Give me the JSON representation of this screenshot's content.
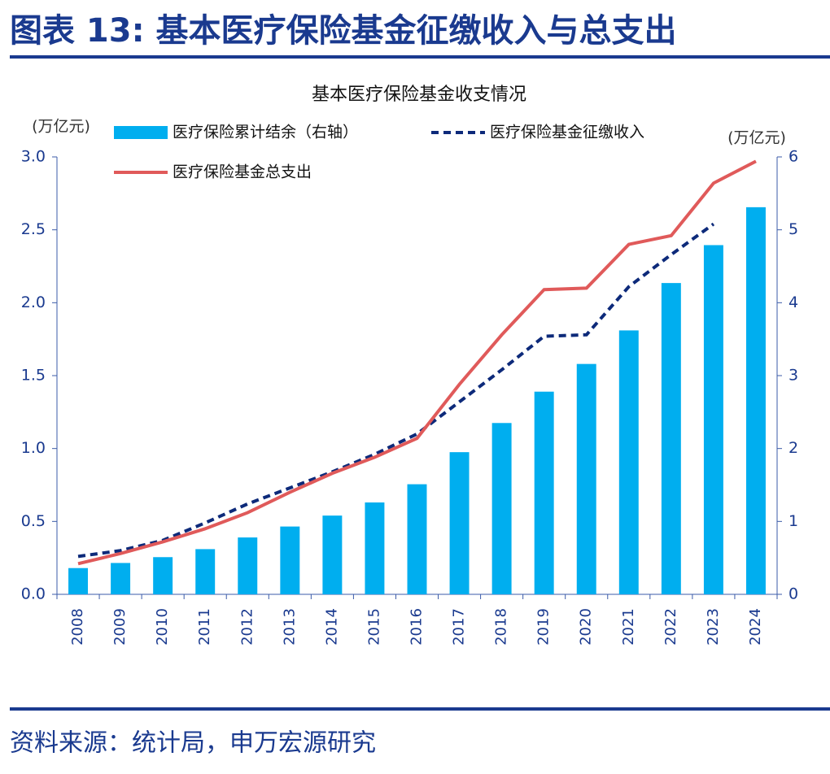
{
  "header": {
    "title": "图表 13: 基本医疗保险基金征缴收入与总支出"
  },
  "chart_data": {
    "type": "combo",
    "title": "基本医疗保险基金收支情况",
    "y_label": "(万亿元)",
    "y2_label": "(万亿元)",
    "categories": [
      "2008",
      "2009",
      "2010",
      "2011",
      "2012",
      "2013",
      "2014",
      "2015",
      "2016",
      "2017",
      "2018",
      "2019",
      "2020",
      "2021",
      "2022",
      "2023",
      "2024"
    ],
    "series": [
      {
        "name": "医疗保险累计结余（右轴）",
        "type": "bar",
        "axis": "y2",
        "color": "#00aeef",
        "values": [
          0.36,
          0.43,
          0.51,
          0.62,
          0.78,
          0.93,
          1.08,
          1.26,
          1.51,
          1.95,
          2.35,
          2.78,
          3.16,
          3.62,
          4.27,
          4.79,
          5.31
        ]
      },
      {
        "name": "医疗保险基金征缴收入",
        "type": "line",
        "dashed": true,
        "color": "#0d2a7a",
        "values": [
          0.26,
          0.3,
          0.37,
          0.49,
          0.62,
          0.73,
          0.84,
          0.96,
          1.1,
          1.32,
          1.54,
          1.77,
          1.78,
          2.11,
          2.33,
          2.54,
          null
        ]
      },
      {
        "name": "医疗保险基金总支出",
        "type": "line",
        "dashed": false,
        "color": "#e05a5a",
        "values": [
          0.21,
          0.28,
          0.36,
          0.45,
          0.56,
          0.7,
          0.83,
          0.94,
          1.07,
          1.44,
          1.78,
          2.09,
          2.1,
          2.4,
          2.46,
          2.82,
          2.97
        ]
      }
    ],
    "ylim": [
      0,
      3
    ],
    "yticks": [
      {
        "value": 0,
        "label": "0.0"
      },
      0.5,
      {
        "value": 1,
        "label": "1.0"
      },
      1.5,
      {
        "value": 2,
        "label": "2.0"
      },
      2.5,
      {
        "value": 3,
        "label": "3.0"
      }
    ],
    "y2lim": [
      0,
      6
    ],
    "y2ticks": [
      0,
      1,
      2,
      3,
      4,
      5,
      6
    ]
  },
  "footer": {
    "source": "资料来源：统计局，申万宏源研究"
  }
}
